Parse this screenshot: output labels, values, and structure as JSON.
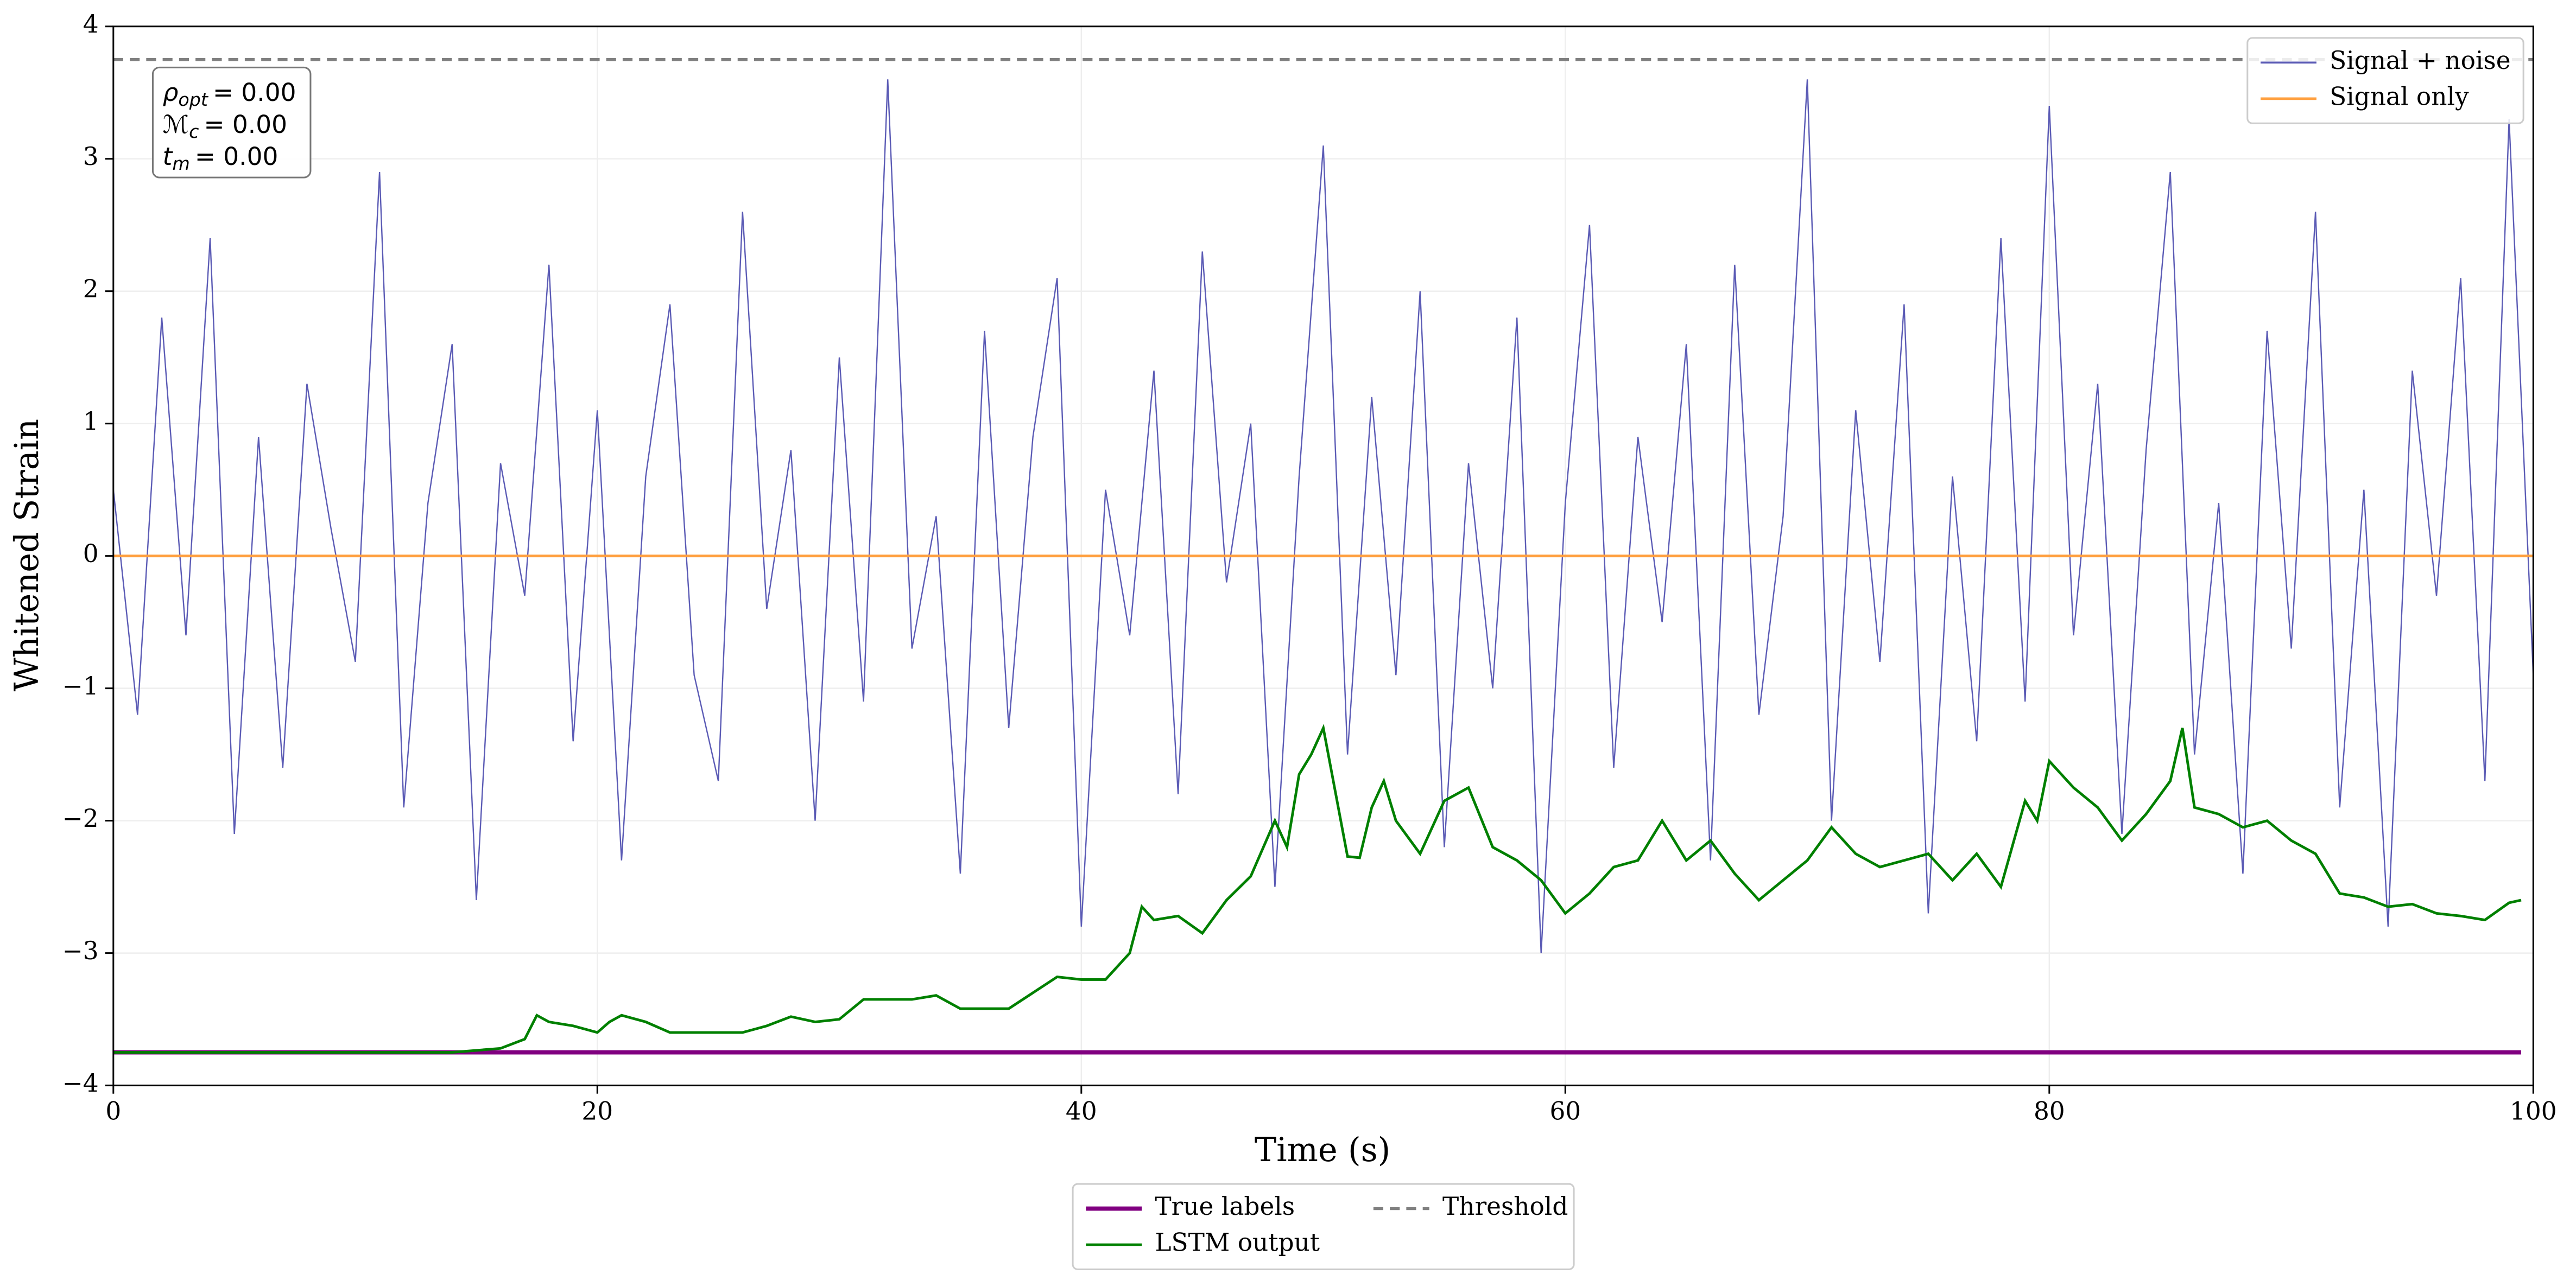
{
  "chart_data": {
    "type": "line",
    "xlabel": "Time (s)",
    "ylabel": "Whitened Strain",
    "xlim": [
      0,
      100
    ],
    "ylim": [
      -4,
      4
    ],
    "xticks": [
      0,
      20,
      40,
      60,
      80,
      100
    ],
    "yticks": [
      {
        "value": -4,
        "label": "−4"
      },
      {
        "value": -3,
        "label": "−3"
      },
      {
        "value": -2,
        "label": "−2"
      },
      {
        "value": -1,
        "label": "−1"
      },
      0,
      1,
      2,
      3,
      4
    ],
    "grid": true,
    "annotation": [
      {
        "symbol": "ρ",
        "sub": "opt",
        "text": "= 0.00"
      },
      {
        "symbol": "ℳ",
        "sub": "c",
        "text": "= 0.00"
      },
      {
        "symbol": "t",
        "sub": "m",
        "text": "= 0.00"
      }
    ],
    "legends": [
      {
        "loc": "upper right",
        "columns": 1
      },
      {
        "loc": "below",
        "columns": 2
      }
    ],
    "series": [
      {
        "name": "Signal + noise",
        "color": "#5b5bb5",
        "legend": 0,
        "x": [
          0,
          1,
          2,
          3,
          4,
          5,
          6,
          7,
          8,
          9,
          10,
          11,
          12,
          13,
          14,
          15,
          16,
          17,
          18,
          19,
          20,
          21,
          22,
          23,
          24,
          25,
          26,
          27,
          28,
          29,
          30,
          31,
          32,
          33,
          34,
          35,
          36,
          37,
          38,
          39,
          40,
          41,
          42,
          43,
          44,
          45,
          46,
          47,
          48,
          49,
          50,
          51,
          52,
          53,
          54,
          55,
          56,
          57,
          58,
          59,
          60,
          61,
          62,
          63,
          64,
          65,
          66,
          67,
          68,
          69,
          70,
          71,
          72,
          73,
          74,
          75,
          76,
          77,
          78,
          79,
          80,
          81,
          82,
          83,
          84,
          85,
          86,
          87,
          88,
          89,
          90,
          91,
          92,
          93,
          94,
          95,
          96,
          97,
          98,
          99,
          100
        ],
        "values": [
          0.5,
          -1.2,
          1.8,
          -0.6,
          2.4,
          -2.1,
          0.9,
          -1.6,
          1.3,
          0.2,
          -0.8,
          2.9,
          -1.9,
          0.4,
          1.6,
          -2.6,
          0.7,
          -0.3,
          2.2,
          -1.4,
          1.1,
          -2.3,
          0.6,
          1.9,
          -0.9,
          -1.7,
          2.6,
          -0.4,
          0.8,
          -2.0,
          1.5,
          -1.1,
          3.6,
          -0.7,
          0.3,
          -2.4,
          1.7,
          -1.3,
          0.9,
          2.1,
          -2.8,
          0.5,
          -0.6,
          1.4,
          -1.8,
          2.3,
          -0.2,
          1.0,
          -2.5,
          0.6,
          3.1,
          -1.5,
          1.2,
          -0.9,
          2.0,
          -2.2,
          0.7,
          -1.0,
          1.8,
          -3.0,
          0.4,
          2.5,
          -1.6,
          0.9,
          -0.5,
          1.6,
          -2.3,
          2.2,
          -1.2,
          0.3,
          3.6,
          -2.0,
          1.1,
          -0.8,
          1.9,
          -2.7,
          0.6,
          -1.4,
          2.4,
          -1.1,
          3.4,
          -0.6,
          1.3,
          -2.1,
          0.8,
          2.9,
          -1.5,
          0.4,
          -2.4,
          1.7,
          -0.7,
          2.6,
          -1.9,
          0.5,
          -2.8,
          1.4,
          -0.3,
          2.1,
          -1.7,
          3.3,
          -0.9
        ]
      },
      {
        "name": "Signal only",
        "color": "#ffa040",
        "legend": 0,
        "x": [
          0,
          100
        ],
        "values": [
          0,
          0
        ]
      },
      {
        "name": "True labels",
        "color": "#800080",
        "legend": 1,
        "x": [
          0,
          99.5
        ],
        "values": [
          -3.75,
          -3.75
        ]
      },
      {
        "name": "LSTM output",
        "color": "#008000",
        "legend": 1,
        "x": [
          0,
          14,
          16,
          17,
          17.5,
          18,
          19,
          20,
          20.5,
          21,
          22,
          23,
          24,
          25,
          26,
          27,
          28,
          29,
          30,
          31,
          32,
          33,
          34,
          35,
          36,
          37,
          38,
          39,
          40,
          41,
          42,
          42.5,
          43,
          44,
          45,
          46,
          47,
          48,
          48.5,
          49,
          49.5,
          50,
          51,
          51.5,
          52,
          52.5,
          53,
          54,
          55,
          56,
          57,
          58,
          59,
          60,
          61,
          62,
          63,
          64,
          65,
          66,
          67,
          68,
          69,
          70,
          71,
          72,
          73,
          74,
          75,
          76,
          77,
          78,
          79,
          79.5,
          80,
          81,
          82,
          83,
          84,
          85,
          85.5,
          86,
          87,
          88,
          89,
          90,
          91,
          92,
          93,
          94,
          95,
          96,
          97,
          98,
          99,
          99.5
        ],
        "values": [
          -3.75,
          -3.75,
          -3.72,
          -3.65,
          -3.47,
          -3.52,
          -3.55,
          -3.6,
          -3.52,
          -3.47,
          -3.52,
          -3.6,
          -3.6,
          -3.6,
          -3.6,
          -3.55,
          -3.48,
          -3.52,
          -3.5,
          -3.35,
          -3.35,
          -3.35,
          -3.32,
          -3.42,
          -3.42,
          -3.42,
          -3.3,
          -3.18,
          -3.2,
          -3.2,
          -3.0,
          -2.65,
          -2.75,
          -2.72,
          -2.85,
          -2.6,
          -2.42,
          -2.0,
          -2.2,
          -1.65,
          -1.5,
          -1.3,
          -2.27,
          -2.28,
          -1.9,
          -1.7,
          -2.0,
          -2.25,
          -1.85,
          -1.75,
          -2.2,
          -2.3,
          -2.45,
          -2.7,
          -2.55,
          -2.35,
          -2.3,
          -2.0,
          -2.3,
          -2.15,
          -2.4,
          -2.6,
          -2.45,
          -2.3,
          -2.05,
          -2.25,
          -2.35,
          -2.3,
          -2.25,
          -2.45,
          -2.25,
          -2.5,
          -1.85,
          -2.0,
          -1.55,
          -1.75,
          -1.9,
          -2.15,
          -1.95,
          -1.7,
          -1.3,
          -1.9,
          -1.95,
          -2.05,
          -2.0,
          -2.15,
          -2.25,
          -2.55,
          -2.58,
          -2.65,
          -2.63,
          -2.7,
          -2.72,
          -2.75,
          -2.62,
          -2.6
        ]
      },
      {
        "name": "Threshold",
        "color": "#808080",
        "legend": 1,
        "dashed": true,
        "x": [
          0,
          100
        ],
        "values": [
          3.75,
          3.75
        ]
      }
    ]
  }
}
